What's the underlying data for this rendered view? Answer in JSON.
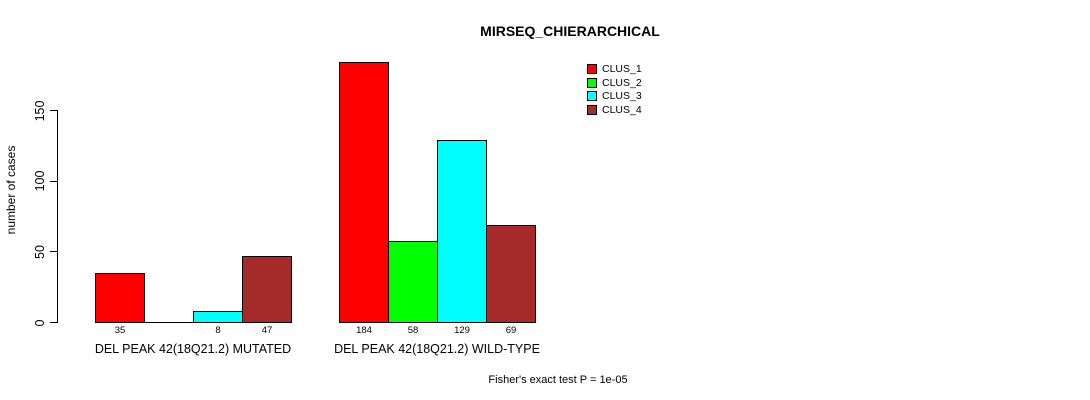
{
  "figure": {
    "background": "#ffffff",
    "text_color": "#000000"
  },
  "chart_data": {
    "type": "bar",
    "title": "MIRSEQ_CHIERARCHICAL",
    "ylabel": "number of cases",
    "xlabel": "",
    "ylim": [
      0,
      150
    ],
    "yticks": [
      0,
      50,
      100,
      150
    ],
    "grid": false,
    "bar_border_color": "#000000",
    "axis_color": "#000000",
    "legend_position": "top-right",
    "categories": [
      "DEL PEAK 42(18Q21.2) MUTATED",
      "DEL PEAK 42(18Q21.2) WILD-TYPE"
    ],
    "series": [
      {
        "name": "CLUS_1",
        "color": "#ff0000",
        "values": [
          35,
          184
        ]
      },
      {
        "name": "CLUS_2",
        "color": "#00ff00",
        "values": [
          0,
          58
        ]
      },
      {
        "name": "CLUS_3",
        "color": "#00ffff",
        "values": [
          8,
          129
        ]
      },
      {
        "name": "CLUS_4",
        "color": "#a52a2a",
        "values": [
          47,
          69
        ]
      }
    ],
    "value_labels": {
      "shown": true,
      "hide_zero": true
    },
    "annotation": "Fisher's exact test P = 1e-05"
  }
}
